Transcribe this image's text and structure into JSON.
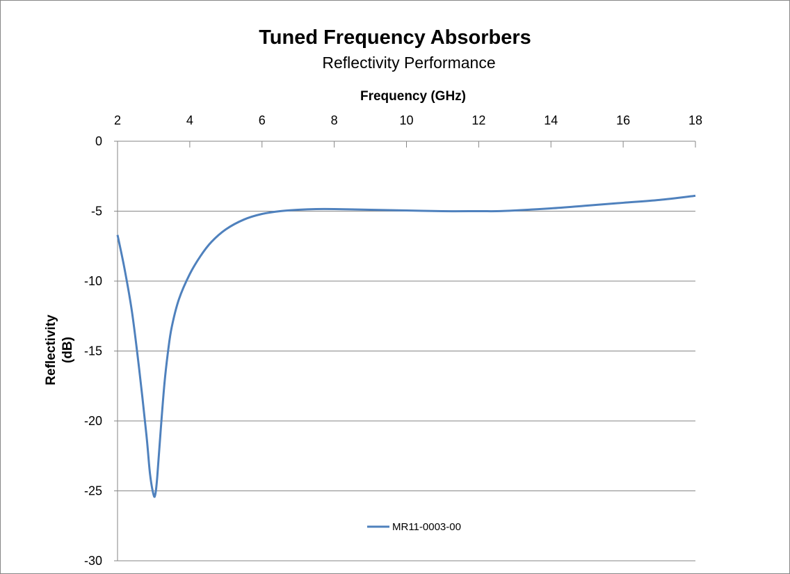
{
  "chart_data": {
    "type": "line",
    "title": "Tuned Frequency Absorbers",
    "subtitle": "Reflectivity Performance",
    "xlabel": "Frequency (GHz)",
    "ylabel_lines": [
      "Reflectivity",
      "(dB)"
    ],
    "xlim": [
      2,
      18
    ],
    "ylim": [
      -30,
      0
    ],
    "x_ticks": [
      2,
      4,
      6,
      8,
      10,
      12,
      14,
      16,
      18
    ],
    "y_ticks": [
      0,
      -5,
      -10,
      -15,
      -20,
      -25,
      -30
    ],
    "x_axis_position": "top",
    "grid": "horizontal",
    "legend_position": "bottom-center",
    "series": [
      {
        "name": "MR11-0003-00",
        "color": "#4F81BD",
        "x": [
          2.0,
          2.2,
          2.4,
          2.6,
          2.8,
          2.9,
          3.0,
          3.05,
          3.1,
          3.2,
          3.3,
          3.4,
          3.5,
          3.7,
          4.0,
          4.3,
          4.6,
          5.0,
          5.5,
          6.0,
          6.5,
          7.0,
          7.5,
          8.0,
          9.0,
          10.0,
          11.0,
          12.0,
          12.5,
          13.0,
          14.0,
          15.0,
          16.0,
          17.0,
          18.0
        ],
        "y": [
          -6.7,
          -9.2,
          -12.2,
          -16.3,
          -21.0,
          -23.8,
          -25.3,
          -25.2,
          -24.0,
          -20.5,
          -17.3,
          -15.0,
          -13.3,
          -11.3,
          -9.5,
          -8.2,
          -7.2,
          -6.3,
          -5.6,
          -5.2,
          -5.0,
          -4.9,
          -4.85,
          -4.85,
          -4.9,
          -4.95,
          -5.0,
          -5.0,
          -5.0,
          -4.95,
          -4.8,
          -4.6,
          -4.4,
          -4.2,
          -3.9
        ]
      }
    ]
  }
}
